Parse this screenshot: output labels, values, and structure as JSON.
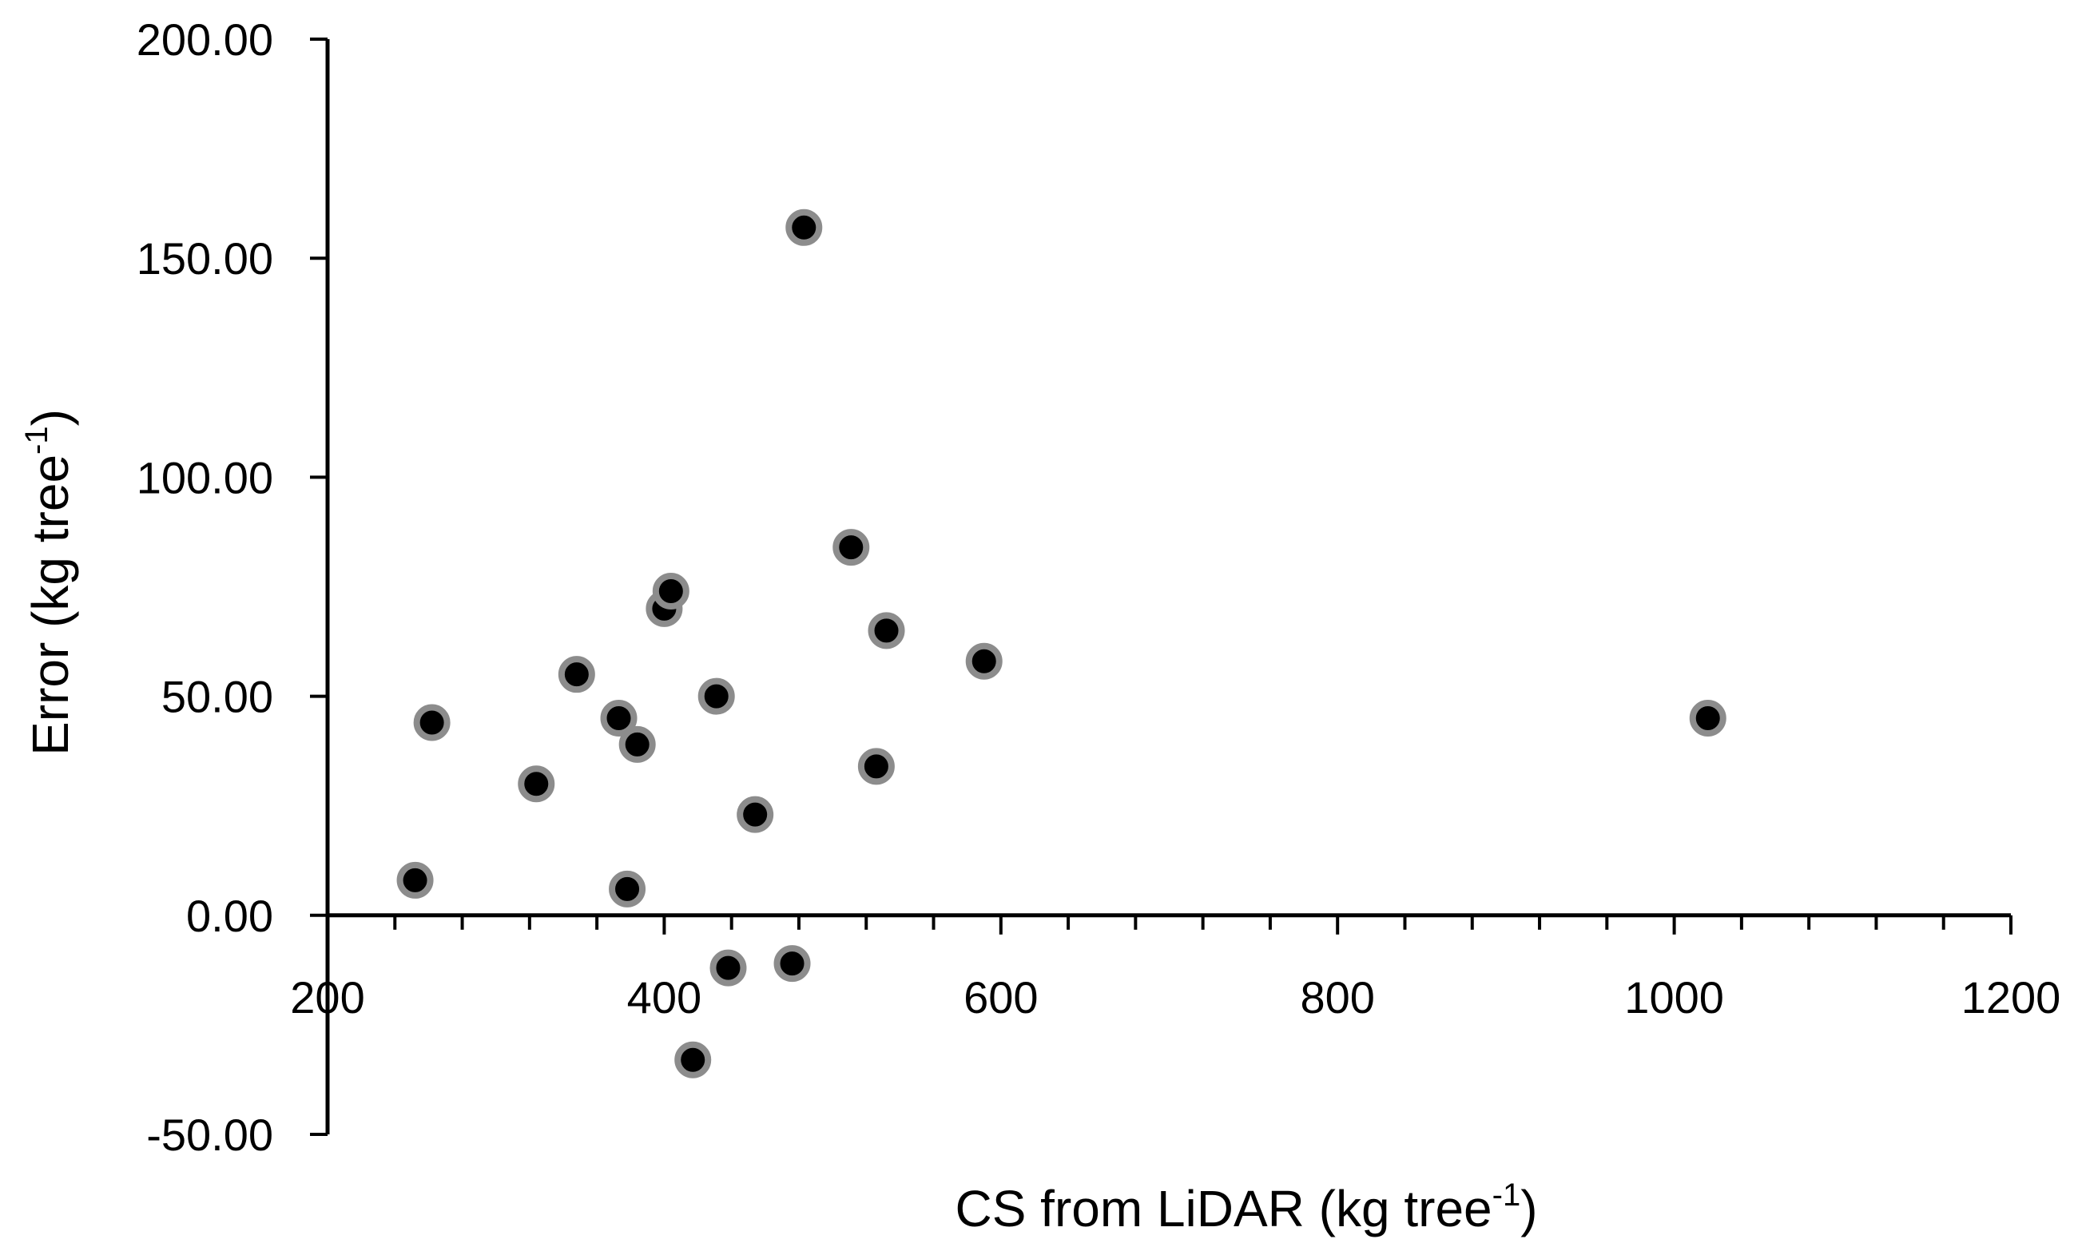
{
  "chart_data": {
    "type": "scatter",
    "xlabel": "CS from LiDAR (kg tree",
    "ylabel": "Error (kg tree",
    "label_superscript": "-1",
    "label_close": ")",
    "xlim": [
      200,
      1200
    ],
    "ylim": [
      -50,
      200
    ],
    "x_major_step": 200,
    "x_minor_step": 40,
    "y_major_step": 50,
    "x_tick_labels": [
      "200",
      "400",
      "600",
      "800",
      "1000",
      "1200"
    ],
    "y_tick_labels": [
      "-50.00",
      "0.00",
      "50.00",
      "100.00",
      "150.00",
      "200.00"
    ],
    "grid": false,
    "legend": "none",
    "colors": {
      "point_fill": "#000000",
      "point_stroke": "#8c8c8c",
      "axis": "#000000"
    },
    "points": [
      {
        "x": 252,
        "y": 8
      },
      {
        "x": 262,
        "y": 44
      },
      {
        "x": 324,
        "y": 30
      },
      {
        "x": 348,
        "y": 55
      },
      {
        "x": 373,
        "y": 45
      },
      {
        "x": 378,
        "y": 6
      },
      {
        "x": 384,
        "y": 39
      },
      {
        "x": 400,
        "y": 70
      },
      {
        "x": 404,
        "y": 74
      },
      {
        "x": 417,
        "y": -33
      },
      {
        "x": 431,
        "y": 50
      },
      {
        "x": 438,
        "y": -12
      },
      {
        "x": 454,
        "y": 23
      },
      {
        "x": 476,
        "y": -11
      },
      {
        "x": 483,
        "y": 157
      },
      {
        "x": 511,
        "y": 84
      },
      {
        "x": 526,
        "y": 34
      },
      {
        "x": 532,
        "y": 65
      },
      {
        "x": 590,
        "y": 58
      },
      {
        "x": 1020,
        "y": 45
      }
    ]
  }
}
